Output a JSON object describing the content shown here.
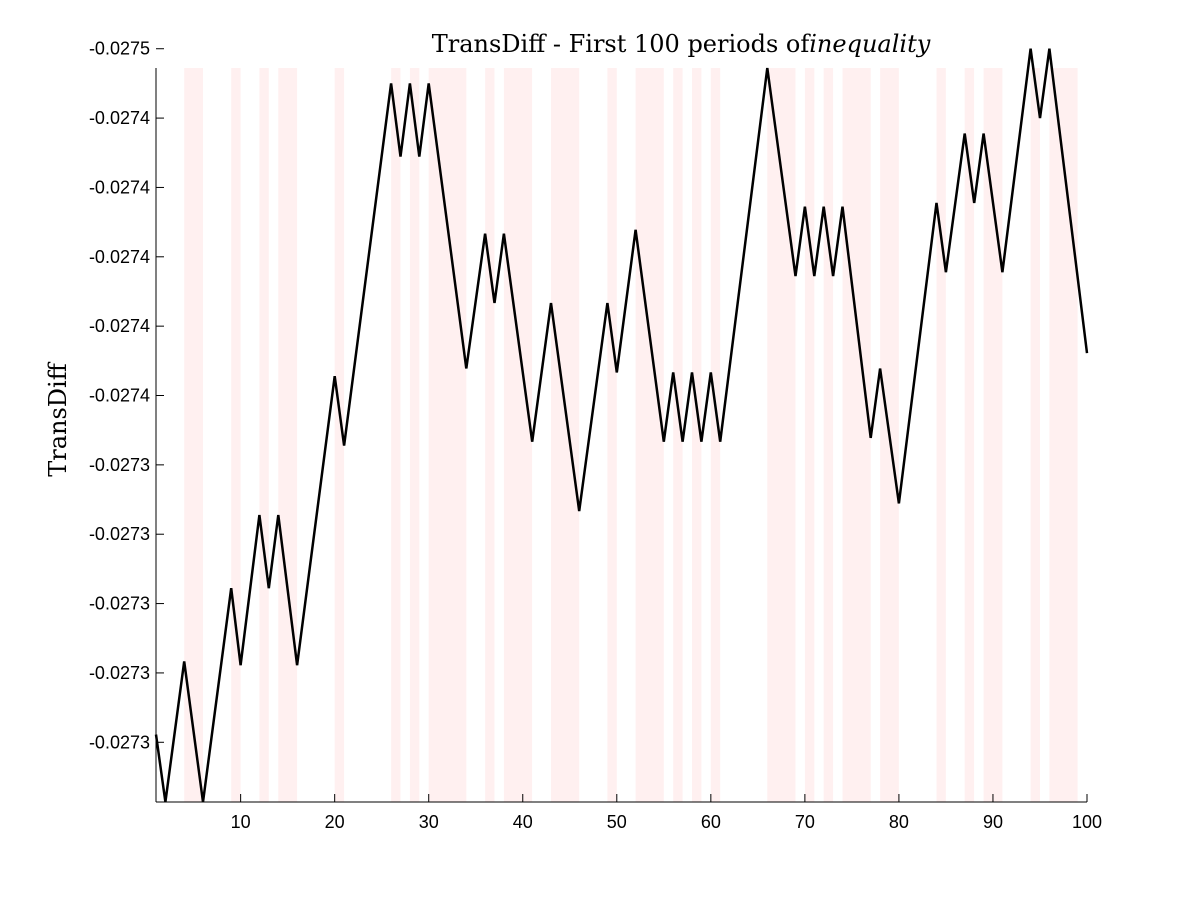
{
  "chart_data": {
    "type": "line",
    "title": "TransDiff - First 100 periods of",
    "title_italic": "inequality",
    "ylabel": "TransDiff",
    "xlabel": "",
    "xlim": [
      1,
      100
    ],
    "ylim": [
      -0.027455,
      -0.0272645
    ],
    "grid": false,
    "x_ticks": [
      10,
      20,
      30,
      40,
      50,
      60,
      70,
      80,
      90,
      100
    ],
    "y_ticks": [
      {
        "value": -0.02728,
        "label": "-0.0273"
      },
      {
        "value": -0.027298,
        "label": "-0.0273"
      },
      {
        "value": -0.027316,
        "label": "-0.0273"
      },
      {
        "value": -0.027334,
        "label": "-0.0273"
      },
      {
        "value": -0.027352,
        "label": "-0.0273"
      },
      {
        "value": -0.02737,
        "label": "-0.0274"
      },
      {
        "value": -0.027388,
        "label": "-0.0274"
      },
      {
        "value": -0.027406,
        "label": "-0.0274"
      },
      {
        "value": -0.027424,
        "label": "-0.0274"
      },
      {
        "value": -0.027442,
        "label": "-0.0274"
      },
      {
        "value": -0.02746,
        "label": "-0.0275"
      }
    ],
    "series": [
      {
        "x": [
          1,
          2,
          4,
          6,
          9,
          10,
          12,
          13,
          14,
          16,
          20,
          21,
          26,
          27,
          28,
          29,
          30,
          34,
          36,
          37,
          38,
          41,
          43,
          46,
          49,
          50,
          52,
          55,
          56,
          57,
          58,
          59,
          60,
          61,
          66,
          69,
          70,
          71,
          72,
          73,
          74,
          77,
          78,
          80,
          84,
          85,
          87,
          88,
          89,
          91,
          94,
          95,
          96,
          100
        ],
        "values": [
          -0.027282,
          -0.0272645,
          -0.027301,
          -0.0272645,
          -0.02732,
          -0.0273,
          -0.027339,
          -0.02732,
          -0.027339,
          -0.0273,
          -0.027375,
          -0.027357,
          -0.027451,
          -0.027432,
          -0.027451,
          -0.027432,
          -0.027451,
          -0.027377,
          -0.027412,
          -0.027394,
          -0.027412,
          -0.027358,
          -0.027394,
          -0.02734,
          -0.027394,
          -0.027376,
          -0.027413,
          -0.027358,
          -0.027376,
          -0.027358,
          -0.027376,
          -0.027358,
          -0.027376,
          -0.027358,
          -0.027455,
          -0.027401,
          -0.027419,
          -0.027401,
          -0.027419,
          -0.027401,
          -0.027419,
          -0.027359,
          -0.027377,
          -0.027342,
          -0.02742,
          -0.027402,
          -0.027438,
          -0.02742,
          -0.027438,
          -0.027402,
          -0.02746,
          -0.027442,
          -0.02746,
          -0.027381
        ]
      }
    ],
    "shaded_periods": [
      [
        4,
        6
      ],
      [
        9,
        10
      ],
      [
        12,
        13
      ],
      [
        14,
        16
      ],
      [
        20,
        21
      ],
      [
        26,
        27
      ],
      [
        28,
        29
      ],
      [
        30,
        34
      ],
      [
        36,
        37
      ],
      [
        38,
        41
      ],
      [
        43,
        46
      ],
      [
        49,
        50
      ],
      [
        52,
        55
      ],
      [
        56,
        57
      ],
      [
        58,
        59
      ],
      [
        60,
        61
      ],
      [
        66,
        69
      ],
      [
        70,
        71
      ],
      [
        72,
        73
      ],
      [
        74,
        77
      ],
      [
        78,
        80
      ],
      [
        84,
        85
      ],
      [
        87,
        88
      ],
      [
        89,
        91
      ],
      [
        94,
        95
      ],
      [
        96,
        99
      ]
    ],
    "colors": {
      "line": "#000000",
      "shade": "#fff0f0",
      "axis": "#000000",
      "background": "#ffffff"
    }
  }
}
